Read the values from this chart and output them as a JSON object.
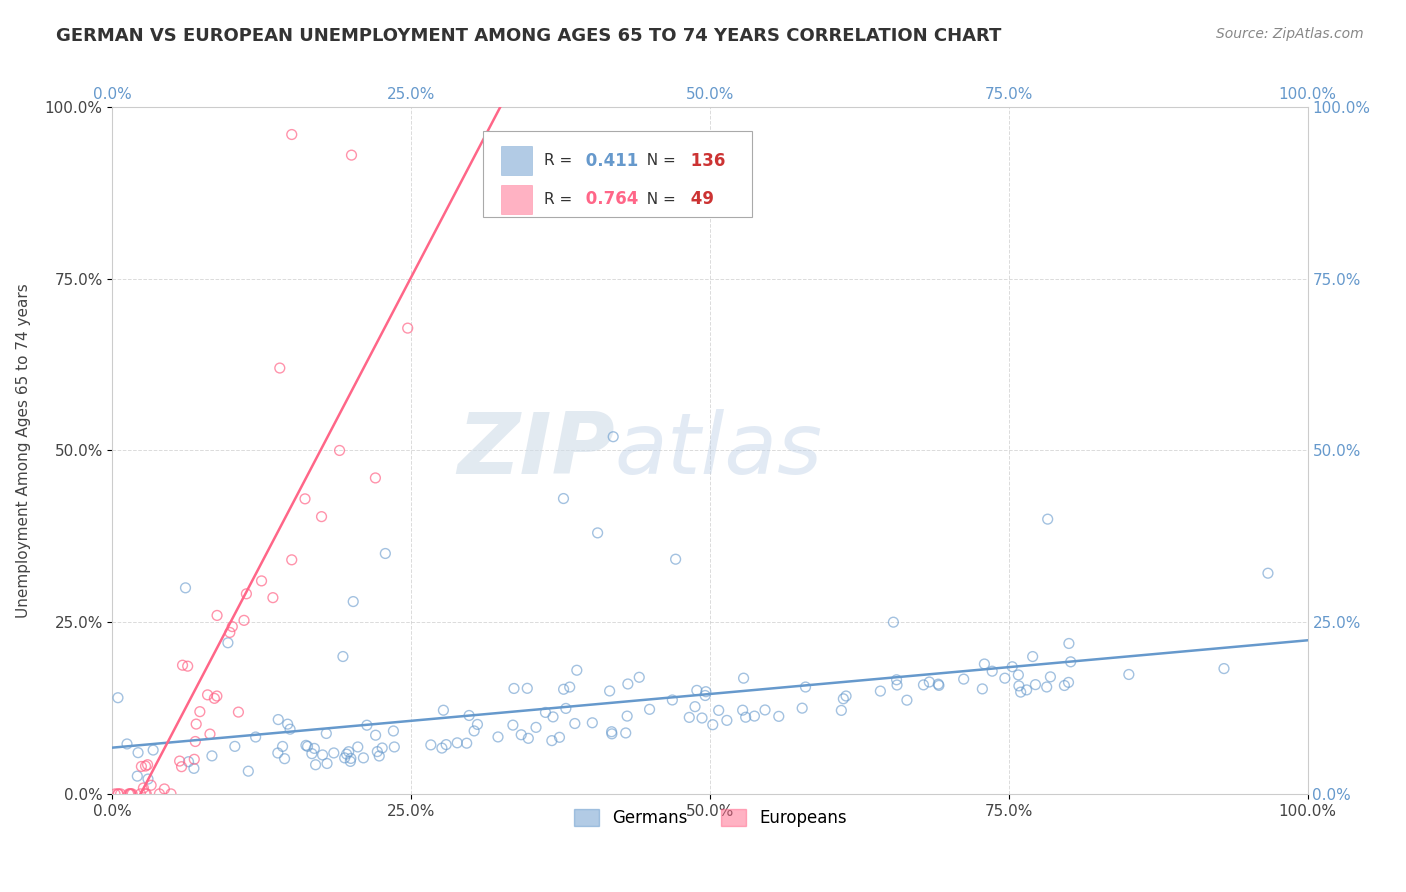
{
  "title": "GERMAN VS EUROPEAN UNEMPLOYMENT AMONG AGES 65 TO 74 YEARS CORRELATION CHART",
  "source": "Source: ZipAtlas.com",
  "ylabel": "Unemployment Among Ages 65 to 74 years",
  "xlim": [
    0,
    1
  ],
  "ylim": [
    0,
    1
  ],
  "xticks": [
    0.0,
    0.25,
    0.5,
    0.75,
    1.0
  ],
  "yticks": [
    0.0,
    0.25,
    0.5,
    0.75,
    1.0
  ],
  "xticklabels": [
    "0.0%",
    "25.0%",
    "50.0%",
    "75.0%",
    "100.0%"
  ],
  "yticklabels": [
    "0.0%",
    "25.0%",
    "50.0%",
    "75.0%",
    "100.0%"
  ],
  "german_color": "#6699cc",
  "european_color": "#ff6688",
  "german_R": 0.411,
  "german_N": 136,
  "european_R": 0.764,
  "european_N": 49,
  "watermark_zip": "ZIP",
  "watermark_atlas": "atlas",
  "background_color": "#ffffff",
  "grid_color": "#cccccc",
  "legend_label_german": "Germans",
  "legend_label_european": "Europeans"
}
